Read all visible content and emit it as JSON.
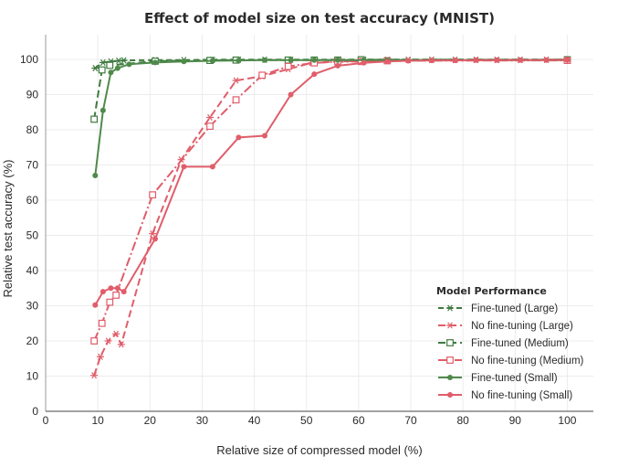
{
  "chart_data": {
    "type": "line",
    "title": "Effect of model size on test accuracy (MNIST)",
    "xlabel": "Relative size of compressed model (%)",
    "ylabel": "Relative test accuracy (%)",
    "xlim": [
      0,
      105
    ],
    "ylim": [
      0,
      107
    ],
    "xticks": [
      0,
      10,
      20,
      30,
      40,
      50,
      60,
      70,
      80,
      90,
      100
    ],
    "yticks": [
      0,
      10,
      20,
      30,
      40,
      50,
      60,
      70,
      80,
      90,
      100
    ],
    "grid": true,
    "legend": {
      "title": "Model Performance",
      "placement": "bottom-right"
    },
    "series": [
      {
        "name": "Fine-tuned (Large)",
        "color": "#3e7b3e",
        "dash": "6,4",
        "marker": "asterisk",
        "x": [
          9.5,
          11,
          12.5,
          14,
          15,
          21,
          26.5,
          32,
          37,
          42,
          47,
          51.5,
          56,
          61,
          65.5,
          69.5,
          74,
          78.5,
          82.5,
          86.5,
          91,
          96,
          100
        ],
        "y": [
          97.5,
          99.1,
          99.4,
          99.6,
          99.7,
          99.8,
          99.8,
          99.9,
          99.9,
          99.9,
          99.9,
          99.9,
          99.9,
          99.9,
          99.9,
          99.9,
          99.9,
          99.9,
          99.9,
          99.9,
          99.9,
          99.9,
          99.9
        ]
      },
      {
        "name": "No fine-tuning (Large)",
        "color": "#e05d6a",
        "dash": "8,4",
        "marker": "asterisk",
        "x": [
          9.3,
          10.5,
          12,
          13.5,
          14.5,
          20.5,
          26,
          31.5,
          36.5,
          41.5,
          46.5,
          51,
          56,
          60.5,
          65.5,
          69.5,
          74,
          78.5,
          82.5,
          86.5,
          91,
          96,
          100
        ],
        "y": [
          10.2,
          15.5,
          20,
          22,
          19,
          50.5,
          71.5,
          83.5,
          94,
          95.2,
          97.2,
          99,
          99.4,
          99.6,
          99.7,
          99.8,
          99.8,
          99.8,
          99.8,
          99.8,
          99.8,
          99.9,
          99.9
        ]
      },
      {
        "name": "Fine-tuned (Medium)",
        "color": "#3e7b3e",
        "dash": "8,4",
        "marker": "square",
        "x": [
          9.3,
          10.8,
          12.3,
          21,
          31.5,
          36.5,
          46.5,
          51.5,
          56,
          60.5,
          100
        ],
        "y": [
          83,
          97,
          98.3,
          99.5,
          99.7,
          99.8,
          99.8,
          99.8,
          99.8,
          99.9,
          99.9
        ]
      },
      {
        "name": "No fine-tuning (Medium)",
        "color": "#e05d6a",
        "dash": "10,3,2,3",
        "marker": "square",
        "x": [
          9.3,
          10.8,
          12.3,
          13.5,
          20.5,
          31.5,
          36.5,
          41.5,
          46.5,
          51.5,
          56,
          60.5,
          65.5,
          100
        ],
        "y": [
          20,
          25,
          31,
          33,
          61.5,
          81,
          88.5,
          95.5,
          98,
          99,
          99.3,
          99.4,
          99.6,
          99.7
        ]
      },
      {
        "name": "Fine-tuned (Small)",
        "color": "#4f8a4b",
        "dash": "",
        "marker": "circle",
        "x": [
          9.5,
          11,
          12.5,
          13.8,
          16,
          21,
          26.5,
          32,
          37,
          42,
          47,
          51.5,
          56,
          61,
          65.5,
          100
        ],
        "y": [
          67,
          85.5,
          96.3,
          97.5,
          98.6,
          99.1,
          99.4,
          99.6,
          99.7,
          99.8,
          99.8,
          99.8,
          99.8,
          99.8,
          99.8,
          99.8
        ]
      },
      {
        "name": "No fine-tuning (Small)",
        "color": "#e05d6a",
        "dash": "",
        "marker": "circle",
        "x": [
          9.5,
          11,
          12.5,
          13.8,
          15,
          21,
          26.5,
          32,
          37,
          42,
          47,
          51.5,
          56,
          61,
          65.5,
          69.5,
          74,
          78.5,
          82.5,
          86.5,
          91,
          96,
          100
        ],
        "y": [
          30.2,
          34,
          35,
          35,
          34,
          49,
          69.5,
          69.5,
          77.8,
          78.3,
          90,
          95.8,
          98.2,
          99,
          99.4,
          99.6,
          99.7,
          99.7,
          99.8,
          99.8,
          99.8,
          99.8,
          99.8
        ]
      }
    ]
  }
}
